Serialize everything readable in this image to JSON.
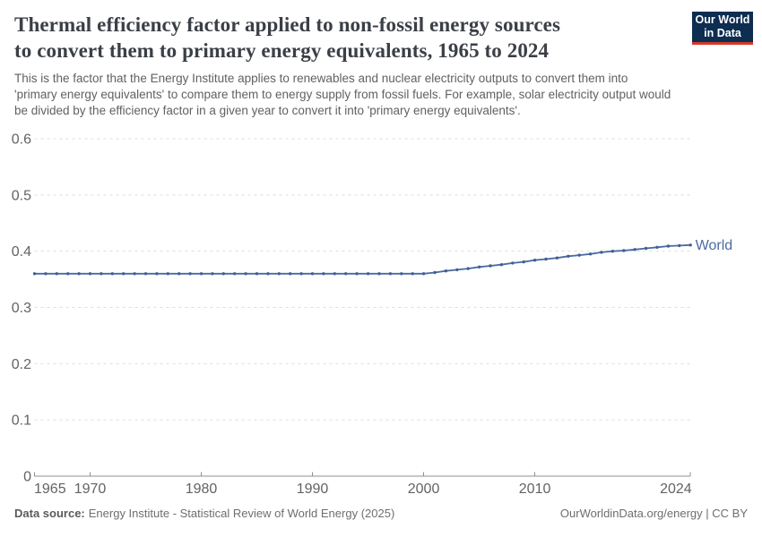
{
  "header": {
    "title_lines": [
      "Thermal efficiency factor applied to non-fossil energy sources",
      "to convert them to primary energy equivalents, 1965 to 2024"
    ],
    "subtitle_lines": [
      "This is the factor that the Energy Institute applies to renewables and nuclear electricity outputs to convert them into",
      "'primary energy equivalents' to compare them to energy supply from fossil fuels. For example, solar electricity output would",
      "be divided by the efficiency factor in a given year to convert it into 'primary energy equivalents'."
    ],
    "logo": {
      "line1": "Our World",
      "line2": "in Data",
      "bg_color": "#0d2d51",
      "accent_color": "#d5392a"
    }
  },
  "chart_data": {
    "type": "line",
    "title": "Thermal efficiency factor applied to non-fossil energy sources to convert them to primary energy equivalents, 1965 to 2024",
    "xlabel": "",
    "ylabel": "",
    "xlim": [
      1965,
      2024
    ],
    "ylim": [
      0,
      0.6
    ],
    "grid": "horizontal-dashed",
    "legend": "end-of-line-label",
    "xticks": [
      1965,
      1970,
      1980,
      1990,
      2000,
      2010,
      2024
    ],
    "xtick_labels": [
      "1965",
      "1970",
      "1980",
      "1990",
      "2000",
      "2010",
      "2024"
    ],
    "yticks": [
      0,
      0.1,
      0.2,
      0.3,
      0.4,
      0.5,
      0.6
    ],
    "ytick_labels": [
      "0",
      "0.1",
      "0.2",
      "0.3",
      "0.4",
      "0.5",
      "0.6"
    ],
    "series": [
      {
        "name": "World",
        "color": "#4c6aa0",
        "marker_color": "#3f5f99",
        "years": [
          1965,
          1966,
          1967,
          1968,
          1969,
          1970,
          1971,
          1972,
          1973,
          1974,
          1975,
          1976,
          1977,
          1978,
          1979,
          1980,
          1981,
          1982,
          1983,
          1984,
          1985,
          1986,
          1987,
          1988,
          1989,
          1990,
          1991,
          1992,
          1993,
          1994,
          1995,
          1996,
          1997,
          1998,
          1999,
          2000,
          2001,
          2002,
          2003,
          2004,
          2005,
          2006,
          2007,
          2008,
          2009,
          2010,
          2011,
          2012,
          2013,
          2014,
          2015,
          2016,
          2017,
          2018,
          2019,
          2020,
          2021,
          2022,
          2023,
          2024
        ],
        "values": [
          0.36,
          0.36,
          0.36,
          0.36,
          0.36,
          0.36,
          0.36,
          0.36,
          0.36,
          0.36,
          0.36,
          0.36,
          0.36,
          0.36,
          0.36,
          0.36,
          0.36,
          0.36,
          0.36,
          0.36,
          0.36,
          0.36,
          0.36,
          0.36,
          0.36,
          0.36,
          0.36,
          0.36,
          0.36,
          0.36,
          0.36,
          0.36,
          0.36,
          0.36,
          0.36,
          0.36,
          0.362,
          0.365,
          0.367,
          0.369,
          0.372,
          0.374,
          0.376,
          0.379,
          0.381,
          0.384,
          0.386,
          0.388,
          0.391,
          0.393,
          0.395,
          0.398,
          0.4,
          0.401,
          0.403,
          0.405,
          0.407,
          0.409,
          0.41,
          0.411
        ]
      }
    ],
    "style": {
      "grid_color": "#dcdcdc",
      "axis_color": "#8f8f8f",
      "tick_label_color": "#636363"
    }
  },
  "footer": {
    "datasource_label": "Data source:",
    "datasource_text": "Energy Institute - Statistical Review of World Energy (2025)",
    "url_text": "OurWorldinData.org/energy",
    "separator": " | ",
    "license_text": "CC BY"
  }
}
